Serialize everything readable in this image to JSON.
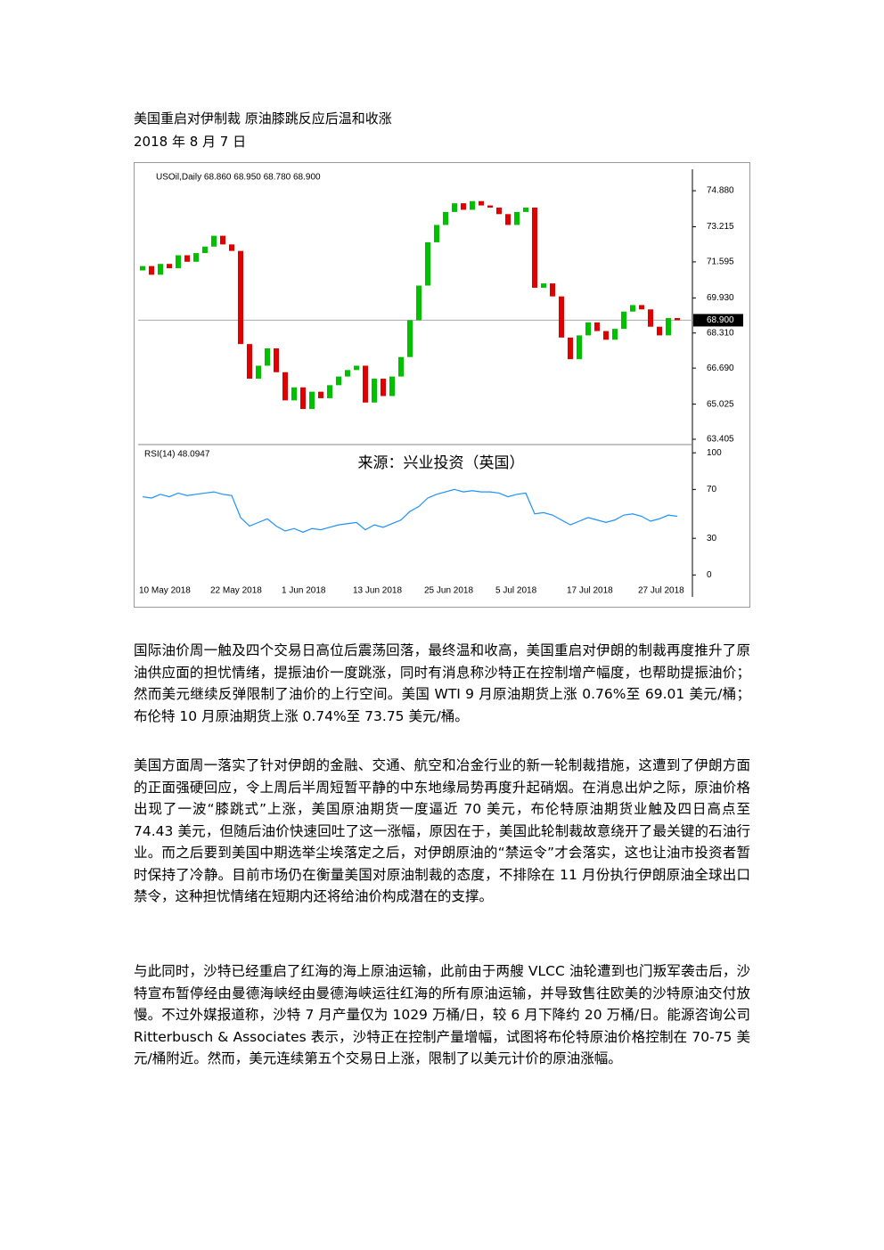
{
  "document": {
    "title": "美国重启对伊制裁 原油膝跳反应后温和收涨",
    "date": "2018 年 8 月 7 日",
    "paragraphs": [
      "国际油价周一触及四个交易日高位后震荡回落，最终温和收高，美国重启对伊朗的制裁再度推升了原油供应面的担忧情绪，提振油价一度跳涨，同时有消息称沙特正在控制增产幅度，也帮助提振油价；然而美元继续反弹限制了油价的上行空间。美国 WTI 9 月原油期货上涨 0.76%至 69.01 美元/桶；布伦特 10 月原油期货上涨 0.74%至 73.75 美元/桶。",
      "美国方面周一落实了针对伊朗的金融、交通、航空和冶金行业的新一轮制裁措施，这遭到了伊朗方面的正面强硬回应，令上周后半周短暂平静的中东地缘局势再度升起硝烟。在消息出炉之际，原油价格出现了一波“膝跳式”上涨，美国原油期货一度逼近 70 美元，布伦特原油期货业触及四日高点至 74.43 美元，但随后油价快速回吐了这一涨幅，原因在于，美国此轮制裁故意绕开了最关键的石油行业。而之后要到美国中期选举尘埃落定之后，对伊朗原油的“禁运令”才会落实，这也让油市投资者暂时保持了冷静。目前市场仍在衡量美国对原油制裁的态度，不排除在 11 月份执行伊朗原油全球出口禁令，这种担忧情绪在短期内还将给油价构成潜在的支撑。",
      "与此同时，沙特已经重启了红海的海上原油运输，此前由于两艘 VLCC 油轮遭到也门叛军袭击后，沙特宣布暂停经由曼德海峡经由曼德海峡运往红海的所有原油运输，并导致售往欧美的沙特原油交付放慢。不过外媒报道称，沙特 7 月产量仅为 1029 万桶/日，较 6 月下降约 20 万桶/日。能源咨询公司 Ritterbusch & Associates 表示，沙特正在控制产量增幅，试图将布伦特原油价格控制在 70-75 美元/桶附近。然而，美元连续第五个交易日上涨，限制了以美元计价的原油涨幅。"
    ]
  },
  "chart_data": {
    "type": "candlestick",
    "title": "USOil,Daily  68.860 68.950 68.780 68.900",
    "annotation": "来源：兴业投资（英国）",
    "categories": [
      "10 May 2018",
      null,
      null,
      null,
      null,
      null,
      null,
      null,
      "22 May 2018",
      null,
      null,
      null,
      null,
      null,
      null,
      null,
      "1 Jun 2018",
      null,
      null,
      null,
      null,
      null,
      null,
      null,
      "13 Jun 2018",
      null,
      null,
      null,
      null,
      null,
      null,
      null,
      "25 Jun 2018",
      null,
      null,
      null,
      null,
      null,
      null,
      null,
      "5 Jul 2018",
      null,
      null,
      null,
      null,
      null,
      null,
      null,
      "17 Jul 2018",
      null,
      null,
      null,
      null,
      null,
      null,
      null,
      "27 Jul 2018",
      null,
      null,
      null,
      null
    ],
    "open": [
      71.2,
      71.4,
      71.0,
      71.5,
      71.3,
      71.9,
      71.6,
      72.0,
      72.3,
      72.8,
      72.4,
      72.1,
      67.8,
      66.2,
      66.8,
      67.6,
      66.5,
      65.2,
      65.8,
      64.8,
      65.6,
      65.3,
      65.9,
      66.3,
      66.6,
      66.8,
      65.1,
      66.2,
      65.4,
      66.3,
      67.2,
      68.9,
      70.5,
      72.5,
      73.3,
      73.9,
      74.3,
      74.0,
      74.4,
      74.2,
      74.1,
      73.8,
      73.3,
      73.9,
      74.1,
      70.4,
      70.6,
      70.0,
      68.1,
      67.1,
      68.2,
      68.8,
      68.4,
      68.0,
      68.5,
      69.3,
      69.6,
      69.4,
      68.6,
      68.2,
      69.0
    ],
    "close": [
      71.4,
      71.0,
      71.5,
      71.3,
      71.9,
      71.6,
      72.0,
      72.3,
      72.8,
      72.4,
      72.1,
      67.8,
      66.2,
      66.8,
      67.6,
      66.5,
      65.2,
      65.8,
      64.8,
      65.6,
      65.3,
      65.9,
      66.3,
      66.6,
      66.8,
      65.1,
      66.2,
      65.4,
      66.3,
      67.2,
      68.9,
      70.5,
      72.5,
      73.3,
      73.9,
      74.3,
      74.0,
      74.4,
      74.2,
      74.1,
      73.8,
      73.3,
      73.9,
      74.1,
      70.4,
      70.6,
      70.0,
      68.1,
      67.1,
      68.2,
      68.8,
      68.4,
      68.0,
      68.5,
      69.3,
      69.6,
      69.4,
      68.6,
      68.2,
      69.0,
      68.9
    ],
    "up_color": "#00c000",
    "down_color": "#e00000",
    "ylim": [
      63.24,
      75.87
    ],
    "yticks": [
      {
        "value": 74.88,
        "label": "74.880"
      },
      {
        "value": 73.215,
        "label": "73.215"
      },
      {
        "value": 71.595,
        "label": "71.595"
      },
      {
        "value": 69.93,
        "label": "69.930"
      },
      {
        "value": 68.31,
        "label": "68.310"
      },
      {
        "value": 66.69,
        "label": "66.690"
      },
      {
        "value": 65.025,
        "label": "65.025"
      },
      {
        "value": 63.405,
        "label": "63.405"
      }
    ],
    "last": {
      "value": 68.9,
      "label": "68.900"
    },
    "rsi": {
      "name": "RSI(14) 48.0947",
      "color": "#1e90ff",
      "ylim": [
        -18,
        106
      ],
      "yticks": [
        100,
        70,
        30,
        0
      ],
      "values": [
        64,
        63,
        66,
        64,
        67,
        65,
        66,
        67,
        68,
        66,
        65,
        47,
        40,
        43,
        46,
        40,
        36,
        38,
        35,
        38,
        37,
        39,
        41,
        42,
        43,
        37,
        41,
        39,
        42,
        45,
        52,
        56,
        63,
        66,
        68,
        70,
        68,
        69,
        68,
        68,
        67,
        64,
        66,
        67,
        50,
        51,
        49,
        45,
        41,
        44,
        47,
        45,
        43,
        45,
        49,
        50,
        48,
        44,
        46,
        49,
        48
      ]
    }
  }
}
